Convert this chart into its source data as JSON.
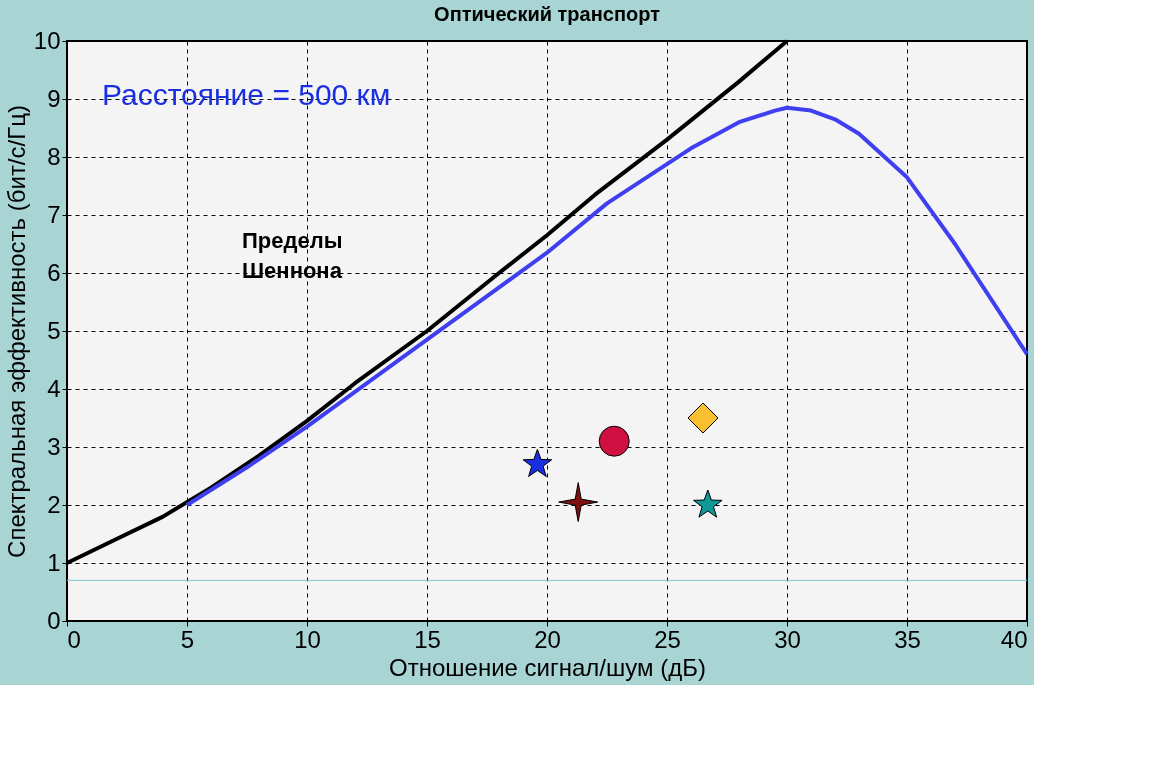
{
  "chart_data": {
    "type": "line",
    "title": "Оптический транспорт",
    "xlabel": "Отношение сигнал/шум (дБ)",
    "ylabel": "Спектральная эффективность (бит/с/Гц)",
    "xlim": [
      0,
      40
    ],
    "ylim": [
      0,
      10
    ],
    "xticks": [
      0,
      5,
      10,
      15,
      20,
      25,
      30,
      35,
      40
    ],
    "yticks": [
      0,
      1,
      2,
      3,
      4,
      5,
      6,
      7,
      8,
      9,
      10
    ],
    "grid": true,
    "line_style": "solid",
    "series": [
      {
        "color": "#000000",
        "x": [
          0,
          2,
          4,
          6,
          8,
          10,
          12,
          15,
          18,
          20,
          22,
          25,
          28,
          30
        ],
        "values": [
          1,
          1.4,
          1.8,
          2.3,
          2.85,
          3.45,
          4.1,
          5.0,
          6.0,
          6.65,
          7.35,
          8.3,
          9.3,
          10
        ]
      },
      {
        "color": "#3f3ff0",
        "x": [
          5,
          7.5,
          10,
          15,
          20,
          22.5,
          26,
          28,
          29.5,
          30,
          31,
          32,
          33,
          35,
          37,
          40
        ],
        "values": [
          2.0,
          2.65,
          3.35,
          4.85,
          6.35,
          7.2,
          8.15,
          8.6,
          8.8,
          8.85,
          8.8,
          8.65,
          8.4,
          7.65,
          6.5,
          4.6
        ]
      },
      {
        "type": "scatter",
        "marker": "star",
        "color": "#1a2fe0",
        "x": [
          19.6
        ],
        "values": [
          2.7
        ]
      },
      {
        "type": "scatter",
        "marker": "circle",
        "color": "#d01040",
        "x": [
          22.8
        ],
        "values": [
          3.1
        ]
      },
      {
        "type": "scatter",
        "marker": "diamond",
        "color": "#f8c030",
        "x": [
          26.5
        ],
        "values": [
          3.5
        ]
      },
      {
        "type": "scatter",
        "marker": "cross",
        "color": "#801010",
        "x": [
          21.3
        ],
        "values": [
          2.05
        ]
      },
      {
        "type": "scatter",
        "marker": "star",
        "color": "#109898",
        "x": [
          26.7
        ],
        "values": [
          2.0
        ]
      }
    ],
    "ref_lines": [
      {
        "axis": "y",
        "value": 0.7,
        "color": "#80c8d0"
      }
    ],
    "annotations": [
      "Расстояние = 500 км",
      "Пределы\nШеннона"
    ]
  }
}
